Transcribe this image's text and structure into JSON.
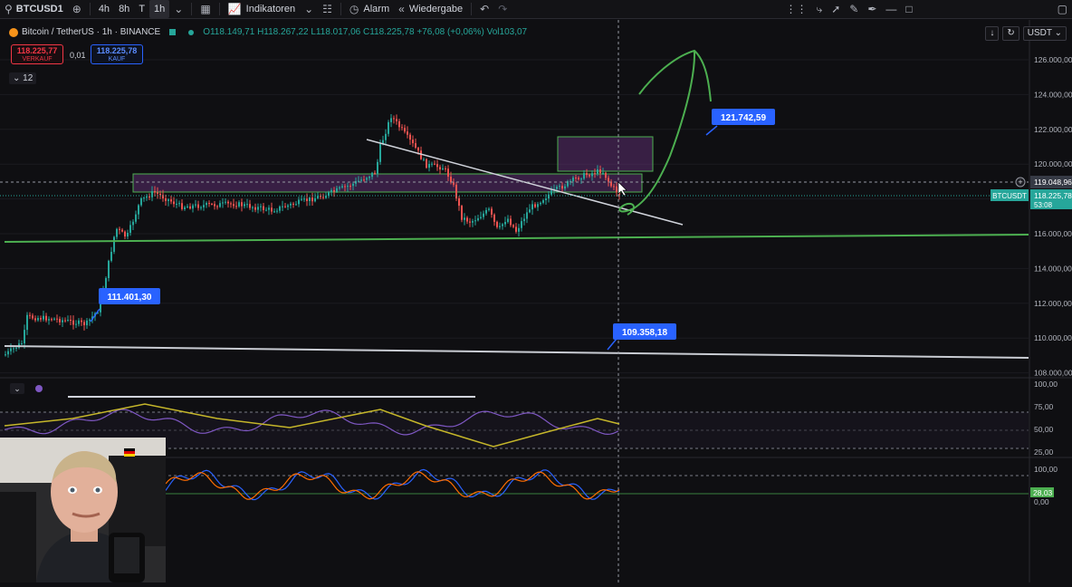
{
  "toolbar": {
    "symbol": "BTCUSD1",
    "intervals": [
      "4h",
      "8h",
      "T",
      "1h"
    ],
    "active_interval": "1h",
    "indicators_label": "Indikatoren",
    "alarm_label": "Alarm",
    "replay_label": "Wiedergabe"
  },
  "legend": {
    "name": "Bitcoin / TetherUS · 1h · BINANCE",
    "ohlc": "O118.149,71 H118.267,22 L118.017,06 C118.225,78 +76,08 (+0,06%) Vol103,07"
  },
  "trade": {
    "sell_price": "118.225,77",
    "sell_label": "VERKAUF",
    "spread": "0,01",
    "buy_price": "118.225,78",
    "buy_label": "KAUF"
  },
  "collapse_count": "12",
  "currency": "USDT",
  "price_axis": {
    "ticks": [
      "126.000,00",
      "124.000,00",
      "122.000,00",
      "120.000,00",
      "118.000,00",
      "116.000,00",
      "114.000,00",
      "112.000,00",
      "110.000,00",
      "108.000,00"
    ],
    "crosshair_price": "119.048,96",
    "last_symbol": "BTCUSDT",
    "last_price": "118.225,78",
    "countdown": "53:08"
  },
  "annotations": {
    "label_high": "121.742,59",
    "label_left": "111.401,30",
    "label_low": "109.358,18"
  },
  "rsi_axis": [
    "100,00",
    "75,00",
    "50,00",
    "25,00"
  ],
  "osc_axis": [
    "100,00",
    "0,00"
  ],
  "osc_value": "28,03",
  "colors": {
    "up": "#26a69a",
    "down": "#ef5350",
    "accent": "#2962ff",
    "trend": "#4caf50"
  }
}
